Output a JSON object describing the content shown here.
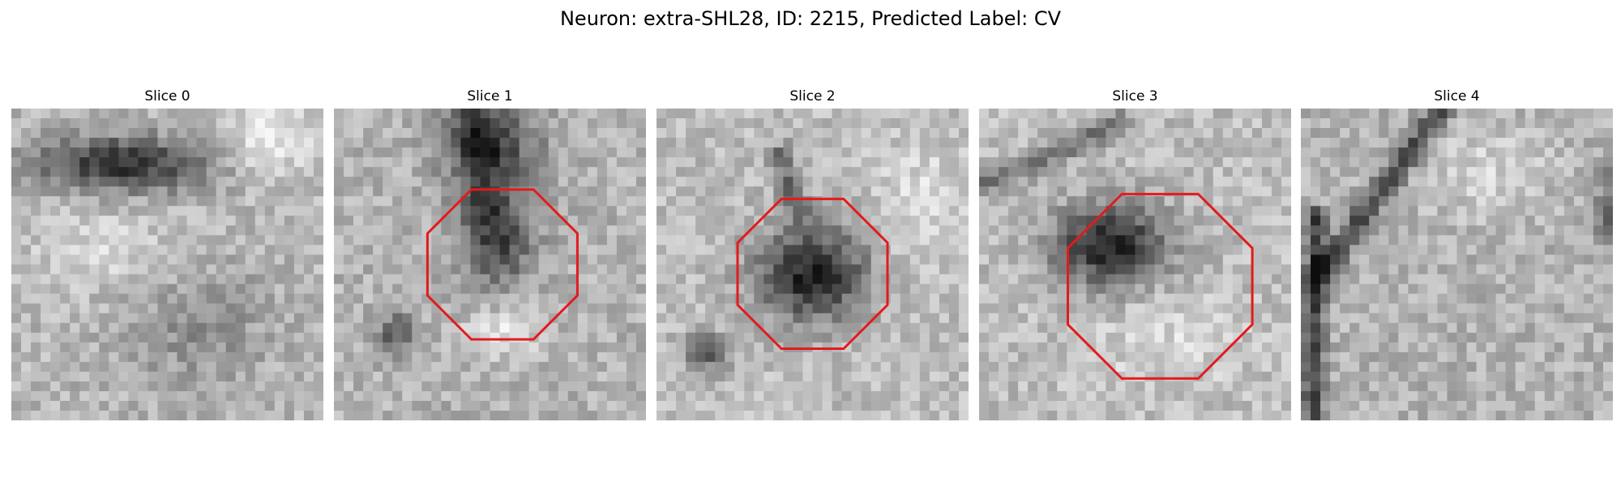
{
  "figure": {
    "title": "Neuron: extra-SHL28, ID: 2215, Predicted Label: CV"
  },
  "colors": {
    "contour": "#e41a1c",
    "background": "#ffffff"
  },
  "image": {
    "colormap": "grayscale",
    "grid": 32
  },
  "slices": [
    {
      "title": "Slice 0",
      "contour": false
    },
    {
      "title": "Slice 1",
      "contour": true
    },
    {
      "title": "Slice 2",
      "contour": true
    },
    {
      "title": "Slice 3",
      "contour": true
    },
    {
      "title": "Slice 4",
      "contour": false
    }
  ]
}
